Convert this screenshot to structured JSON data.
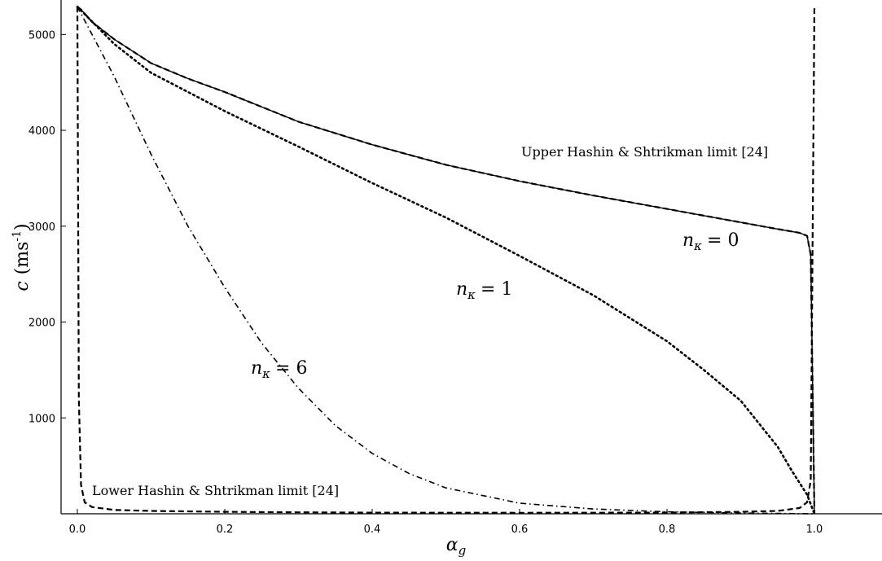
{
  "chart_data": {
    "type": "line",
    "title": "",
    "xlabel": "α",
    "xlabel_sub": "g",
    "ylabel_pre": "c",
    "ylabel_unit": "(ms",
    "ylabel_exp": "-1",
    "ylabel_close": ")",
    "xlim": [
      0,
      1.0
    ],
    "ylim": [
      0,
      5300
    ],
    "grid": false,
    "x_ticks": [
      "0.0",
      "0.2",
      "0.4",
      "0.6",
      "0.8",
      "1.0"
    ],
    "x_tick_values": [
      0,
      0.2,
      0.4,
      0.6,
      0.8,
      1.0
    ],
    "y_ticks": [
      "1000",
      "2000",
      "3000",
      "4000",
      "5000"
    ],
    "y_tick_values": [
      1000,
      2000,
      3000,
      4000,
      5000
    ],
    "annotations": {
      "upper": "Upper Hashin & Shtrikman limit [24]",
      "lower": "Lower Hashin & Shtrikman limit [24]",
      "n0": "= 0",
      "n1": "= 1",
      "n6": "= 6",
      "n_symbol": "n",
      "n_sub": "κ"
    },
    "series": [
      {
        "style": "solid",
        "x": [
          0,
          0.005,
          0.02,
          0.05,
          0.1,
          0.15,
          0.2,
          0.3,
          0.4,
          0.5,
          0.6,
          0.7,
          0.8,
          0.9,
          0.95,
          0.98,
          0.99,
          0.995,
          1.0
        ],
        "y": [
          5290,
          5260,
          5130,
          4950,
          4700,
          4540,
          4400,
          4090,
          3850,
          3640,
          3470,
          3320,
          3180,
          3040,
          2970,
          2930,
          2900,
          2700,
          0
        ]
      },
      {
        "style": "dashed",
        "x": [
          0,
          0.005,
          0.02,
          0.05,
          0.1,
          0.15,
          0.2,
          0.3,
          0.4,
          0.5,
          0.6,
          0.7,
          0.8,
          0.9,
          0.95,
          0.98,
          0.99,
          0.995,
          1.0
        ],
        "y": [
          5290,
          5260,
          5130,
          4950,
          4700,
          4540,
          4400,
          4090,
          3850,
          3640,
          3470,
          3320,
          3180,
          3040,
          2970,
          2930,
          2900,
          2700,
          0
        ]
      },
      {
        "style": "dashed",
        "x": [
          0,
          0.002,
          0.005,
          0.01,
          0.02,
          0.05,
          0.1,
          0.2,
          0.3,
          0.4,
          0.5,
          0.6,
          0.7,
          0.8,
          0.9,
          0.95,
          0.98,
          0.99,
          0.995,
          1.0
        ],
        "y": [
          5290,
          1200,
          300,
          120,
          70,
          40,
          30,
          20,
          15,
          12,
          11,
          10,
          11,
          13,
          20,
          30,
          60,
          120,
          350,
          5290
        ]
      },
      {
        "style": "dotted",
        "x": [
          0,
          0.05,
          0.1,
          0.2,
          0.3,
          0.4,
          0.5,
          0.6,
          0.7,
          0.8,
          0.85,
          0.9,
          0.95,
          0.97,
          0.99,
          1.0
        ],
        "y": [
          5290,
          4900,
          4600,
          4200,
          3830,
          3450,
          3090,
          2690,
          2280,
          1800,
          1500,
          1180,
          700,
          440,
          200,
          0
        ]
      },
      {
        "style": "dashdot",
        "x": [
          0,
          0.05,
          0.1,
          0.15,
          0.2,
          0.25,
          0.3,
          0.35,
          0.4,
          0.45,
          0.5,
          0.6,
          0.7,
          0.8,
          0.9,
          1.0
        ],
        "y": [
          5290,
          4560,
          3750,
          3000,
          2360,
          1780,
          1310,
          920,
          630,
          420,
          270,
          110,
          50,
          20,
          8,
          0
        ]
      }
    ]
  }
}
